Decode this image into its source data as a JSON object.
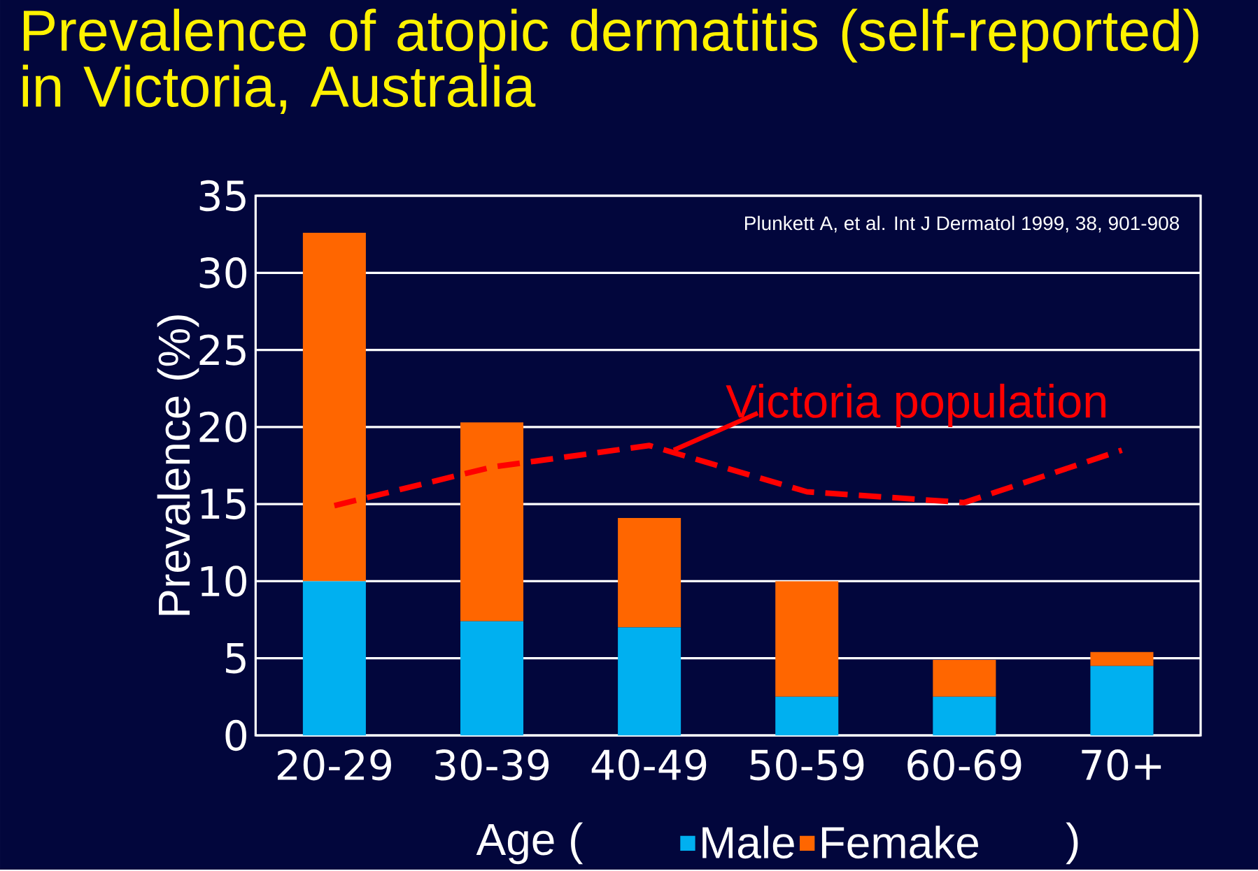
{
  "chart_data": {
    "type": "bar",
    "title": "Prevalence of atopic dermatitis (self-reported) in Victoria, Australia",
    "xlabel": "Age (",
    "ylabel": "Prevalence (%)",
    "categories": [
      "20-29",
      "30-39",
      "40-49",
      "50-59",
      "60-69",
      "70+"
    ],
    "series": [
      {
        "name": "Male",
        "color": "#00b0f0",
        "values": [
          10.0,
          7.4,
          7.0,
          2.5,
          2.5,
          4.5
        ]
      },
      {
        "name": "Femake",
        "color": "#ff6600",
        "values": [
          22.6,
          12.9,
          7.1,
          7.5,
          2.4,
          0.9
        ]
      },
      {
        "name": "Victoria population",
        "type": "line",
        "line_style": "dashed",
        "color": "#ff0000",
        "values": [
          14.9,
          17.4,
          18.8,
          15.8,
          15.1,
          18.5
        ]
      }
    ],
    "stacked": true,
    "ylim": [
      0,
      35
    ],
    "yticks": [
      0,
      5,
      10,
      15,
      20,
      25,
      30,
      35
    ],
    "grid": "y",
    "legend": "bottom",
    "annotations": [
      "Plunkett A, et al. Int J Dermatol 1999, 38, 901-908",
      ")"
    ]
  }
}
